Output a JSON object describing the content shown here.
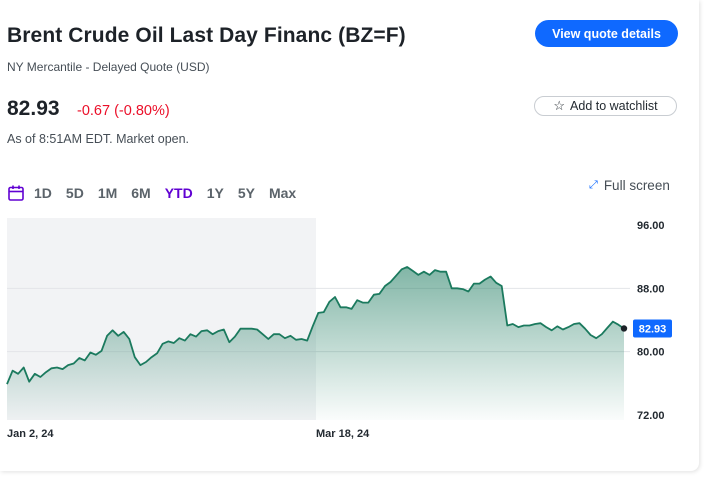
{
  "header": {
    "title": "Brent Crude Oil Last Day Financ (BZ=F)",
    "subtitle": "NY Mercantile - Delayed Quote (USD)",
    "view_quote_label": "View quote details"
  },
  "quote": {
    "price": "82.93",
    "change": "-0.67 (-0.80%)",
    "as_of": "As of 8:51AM EDT. Market open.",
    "watchlist_label": "Add to watchlist"
  },
  "ranges": {
    "items": [
      "1D",
      "5D",
      "1M",
      "6M",
      "YTD",
      "1Y",
      "5Y",
      "Max"
    ],
    "active": "YTD",
    "fullscreen_label": "Full screen"
  },
  "colors": {
    "line": "#1b7a5e",
    "accent": "#0f69ff",
    "negative": "#eb0f29",
    "active_range": "#6001d2"
  },
  "chart_data": {
    "type": "area",
    "y_ticks": [
      "96.00",
      "88.00",
      "80.00",
      "72.00"
    ],
    "x_labels": [
      "Jan 2, 24",
      "Mar 18, 24"
    ],
    "ylim": [
      72,
      96
    ],
    "grid": true,
    "current_label": "82.93",
    "current_value": 82.93,
    "values": [
      75.9,
      77.6,
      77.2,
      78.0,
      76.2,
      77.2,
      76.8,
      77.4,
      77.9,
      78.0,
      77.8,
      78.3,
      78.5,
      79.2,
      78.9,
      79.9,
      79.6,
      80.1,
      82.0,
      82.7,
      82.0,
      82.5,
      81.6,
      79.3,
      78.3,
      78.7,
      79.3,
      79.8,
      81.0,
      81.3,
      81.1,
      81.7,
      81.4,
      82.2,
      81.9,
      82.6,
      82.7,
      82.2,
      82.6,
      82.8,
      81.2,
      81.9,
      82.9,
      82.9,
      82.9,
      82.8,
      82.2,
      81.6,
      82.2,
      82.2,
      81.7,
      82.0,
      81.5,
      81.6,
      81.4,
      83.2,
      84.9,
      85.0,
      86.3,
      86.9,
      85.6,
      85.6,
      85.4,
      86.5,
      86.2,
      86.2,
      87.2,
      87.3,
      88.3,
      88.8,
      89.6,
      90.4,
      90.7,
      90.2,
      89.7,
      90.1,
      89.7,
      90.3,
      90.1,
      90.1,
      88.0,
      88.0,
      87.9,
      87.6,
      88.6,
      88.6,
      89.1,
      89.5,
      88.7,
      88.3,
      83.3,
      83.5,
      83.1,
      83.3,
      83.3,
      83.5,
      83.6,
      83.1,
      82.7,
      83.2,
      82.8,
      83.1,
      83.5,
      83.6,
      82.9,
      82.1,
      81.7,
      82.2,
      83.0,
      83.8,
      83.4,
      82.93
    ]
  }
}
